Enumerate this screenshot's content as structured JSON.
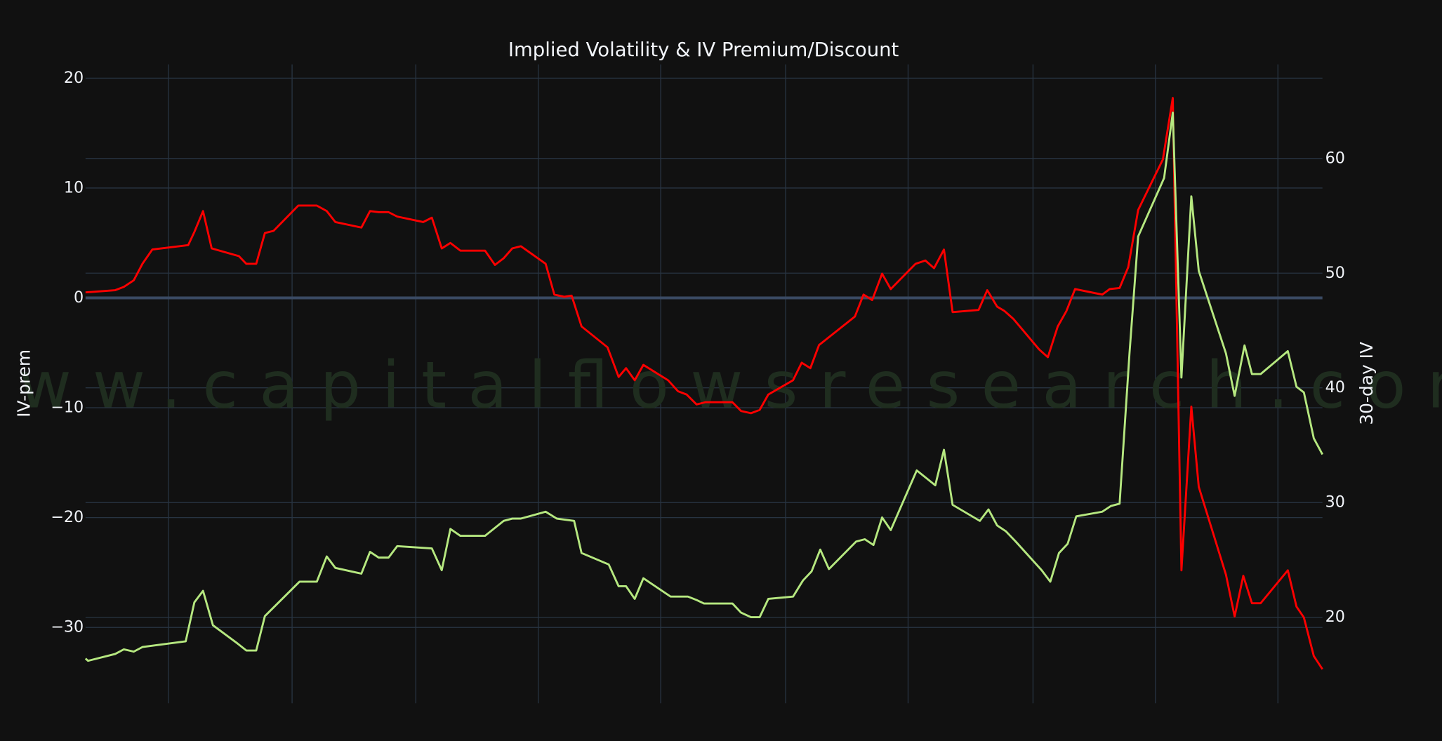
{
  "chart_data": {
    "type": "line",
    "title": "Implied Volatility & IV Premium/Discount",
    "watermark": "www.capitalflowsresearch.com",
    "ylabel": "IV-prem",
    "y2label": "30-day IV",
    "xlim": [
      0,
      100
    ],
    "xticks": [
      6.7,
      16.7,
      26.7,
      36.6,
      46.5,
      56.6,
      66.5,
      76.6,
      86.5,
      96.4
    ],
    "ylim": [
      -36.9,
      21.25
    ],
    "yticks": [
      {
        "value": -30,
        "label": "−30"
      },
      {
        "value": -20,
        "label": "−20"
      },
      {
        "value": -10,
        "label": "−10"
      },
      0,
      10,
      20
    ],
    "y2lim": [
      12.5,
      68.2
    ],
    "y2ticks": [
      20,
      30,
      40,
      50,
      60
    ],
    "grid": true,
    "series": [
      {
        "color": "#ff0000",
        "x": [
          0,
          2.4,
          3.1,
          3.9,
          4.6,
          5.4,
          8.3,
          8.8,
          9.5,
          10.2,
          12.4,
          13.0,
          13.8,
          14.5,
          15.2,
          17.2,
          18.7,
          19.5,
          20.2,
          22.3,
          23.0,
          23.7,
          24.5,
          25.2,
          27.3,
          28.0,
          28.8,
          29.5,
          30.3,
          32.3,
          33.1,
          33.8,
          34.5,
          35.2,
          37.2,
          37.9,
          38.7,
          39.3,
          40.1,
          42.2,
          43.1,
          43.7,
          44.4,
          45.1,
          47.1,
          47.9,
          48.6,
          49.4,
          50.1,
          52.3,
          53.0,
          53.8,
          54.5,
          55.2,
          57.2,
          57.9,
          58.6,
          59.3,
          62.2,
          62.9,
          63.6,
          64.4,
          65.1,
          67.1,
          67.9,
          68.6,
          69.4,
          70.1,
          72.2,
          72.9,
          73.7,
          74.3,
          75.0,
          77.1,
          77.8,
          78.6,
          79.3,
          80.0,
          82.2,
          82.8,
          83.6,
          84.3,
          85.1,
          87.1,
          87.9,
          88.6,
          89.4,
          90.0,
          92.2,
          92.9,
          93.6,
          94.3,
          95.0,
          97.2,
          97.9,
          98.5,
          99.3,
          100
        ],
        "values": [
          0.5,
          0.7,
          1.0,
          1.6,
          3.1,
          4.4,
          4.8,
          6.0,
          7.9,
          4.5,
          3.8,
          3.1,
          3.1,
          5.9,
          6.1,
          8.4,
          8.4,
          7.9,
          6.9,
          6.4,
          7.9,
          7.8,
          7.8,
          7.4,
          6.9,
          7.3,
          4.5,
          5.0,
          4.3,
          4.3,
          3.0,
          3.6,
          4.5,
          4.7,
          3.1,
          0.3,
          0.1,
          0.2,
          -2.6,
          -4.5,
          -7.2,
          -6.4,
          -7.5,
          -6.1,
          -7.5,
          -8.5,
          -8.8,
          -9.7,
          -9.5,
          -9.5,
          -10.3,
          -10.5,
          -10.2,
          -8.8,
          -7.5,
          -5.9,
          -6.4,
          -4.3,
          -1.7,
          0.3,
          -0.2,
          2.2,
          0.8,
          3.1,
          3.4,
          2.7,
          4.4,
          -1.3,
          -1.1,
          0.7,
          -0.8,
          -1.2,
          -1.9,
          -4.7,
          -5.4,
          -2.6,
          -1.2,
          0.8,
          0.3,
          0.8,
          0.9,
          2.8,
          8.0,
          12.6,
          18.2,
          -24.8,
          -9.9,
          -17.2,
          -25.2,
          -29.0,
          -25.3,
          -27.8,
          -27.8,
          -24.8,
          -28.1,
          -29.1,
          -32.6,
          -33.8
        ]
      },
      {
        "color": "#b6e880",
        "axis": "y2",
        "x": [
          0,
          0.2,
          2.4,
          3.1,
          3.9,
          4.6,
          8.1,
          8.8,
          9.5,
          10.3,
          12.3,
          13.0,
          13.8,
          14.5,
          17.3,
          18.7,
          19.5,
          20.2,
          22.3,
          23.0,
          23.7,
          24.5,
          25.2,
          28.0,
          28.8,
          29.5,
          30.3,
          32.3,
          33.8,
          34.5,
          35.2,
          37.2,
          38.1,
          39.5,
          40.1,
          42.3,
          43.1,
          43.7,
          44.4,
          45.1,
          47.3,
          48.7,
          49.4,
          50.0,
          52.3,
          53.0,
          53.8,
          54.5,
          55.2,
          57.2,
          58.0,
          58.7,
          59.4,
          60.1,
          62.3,
          63.0,
          63.7,
          64.4,
          65.1,
          67.2,
          68.7,
          69.4,
          70.1,
          72.3,
          73.0,
          73.7,
          74.4,
          75.2,
          77.3,
          78.0,
          78.7,
          79.4,
          80.1,
          82.2,
          82.9,
          83.6,
          84.4,
          85.1,
          87.2,
          87.9,
          88.6,
          89.4,
          90.0,
          92.2,
          92.9,
          93.7,
          94.3,
          95.0,
          97.2,
          97.9,
          98.5,
          99.3,
          100
        ],
        "values": [
          16.4,
          16.2,
          16.8,
          17.2,
          17.0,
          17.4,
          17.9,
          21.3,
          22.3,
          19.3,
          17.7,
          17.1,
          17.1,
          20.1,
          23.1,
          23.1,
          25.3,
          24.3,
          23.8,
          25.7,
          25.2,
          25.2,
          26.2,
          26.0,
          24.1,
          27.7,
          27.1,
          27.1,
          28.4,
          28.6,
          28.6,
          29.2,
          28.6,
          28.4,
          25.6,
          24.6,
          22.7,
          22.7,
          21.6,
          23.4,
          21.8,
          21.8,
          21.5,
          21.2,
          21.2,
          20.4,
          20.0,
          20.0,
          21.6,
          21.8,
          23.2,
          24.0,
          25.9,
          24.2,
          26.6,
          26.8,
          26.3,
          28.7,
          27.6,
          32.8,
          31.5,
          34.6,
          29.8,
          28.4,
          29.4,
          28.0,
          27.5,
          26.6,
          24.1,
          23.1,
          25.6,
          26.4,
          28.8,
          29.2,
          29.7,
          29.9,
          43.0,
          53.2,
          58.3,
          64.0,
          40.9,
          56.7,
          50.2,
          43.0,
          39.3,
          43.7,
          41.2,
          41.2,
          43.2,
          40.1,
          39.6,
          35.6,
          34.2
        ]
      }
    ]
  }
}
